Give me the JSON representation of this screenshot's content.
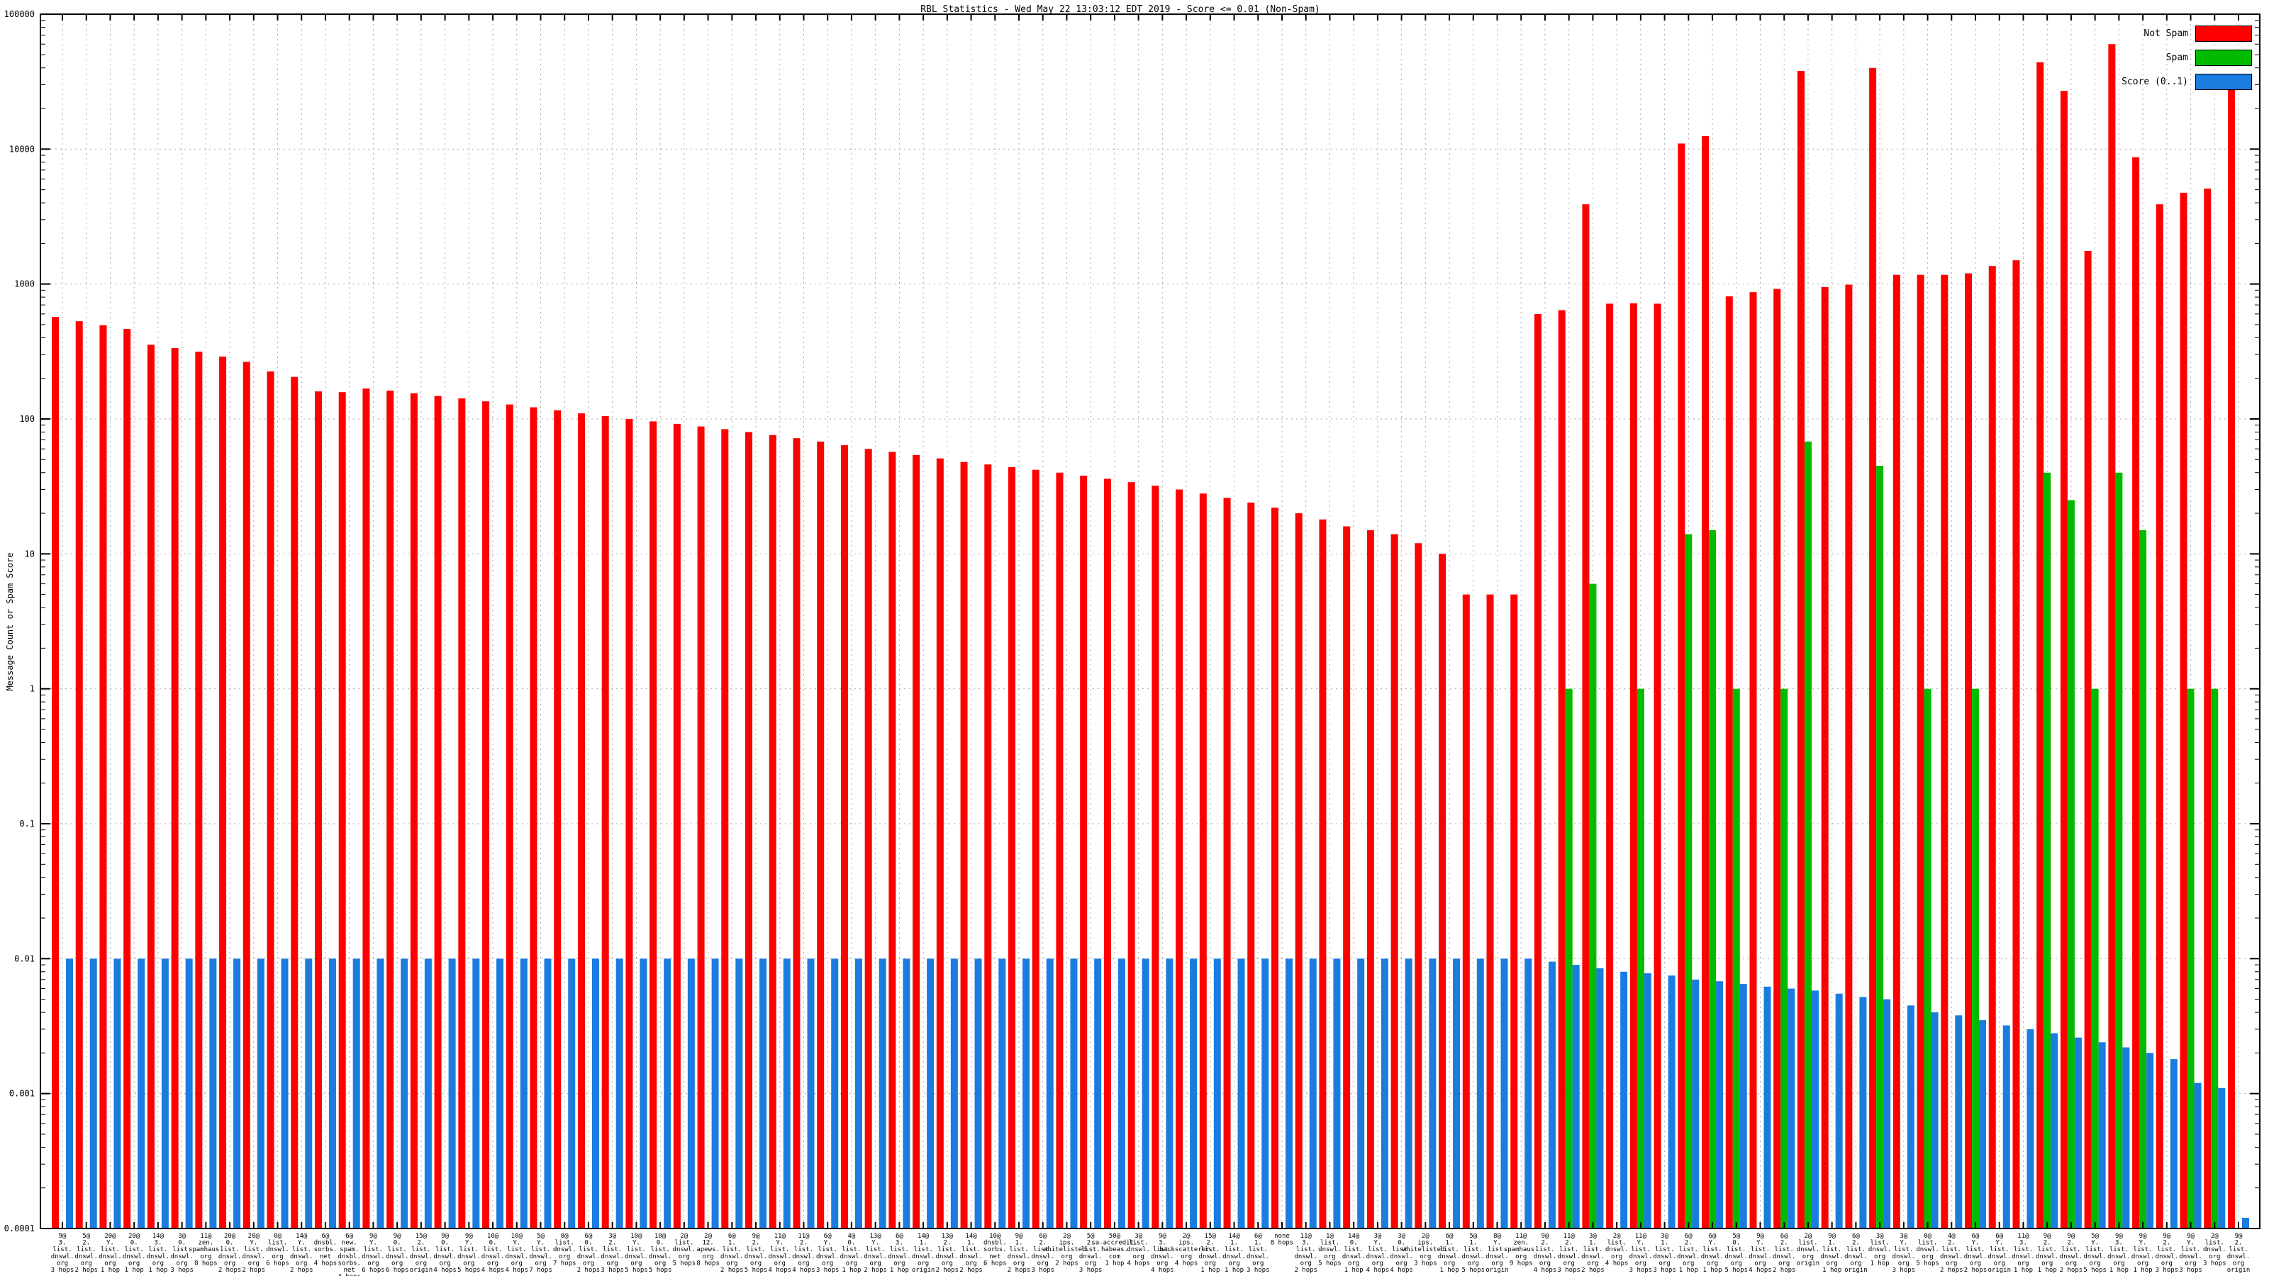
{
  "title": "RBL Statistics - Wed May 22 13:03:12 EDT 2019 - Score <= 0.01 (Non-Spam)",
  "y_axis_label": "Message Count or Spam Score",
  "legend": [
    {
      "label": "Not Spam",
      "color": "#ff0000"
    },
    {
      "label": "Spam",
      "color": "#00bb00"
    },
    {
      "label": "Score (0..1)",
      "color": "#1b7ce0"
    }
  ],
  "colors": {
    "frame": "#000000",
    "grid": "#aaaaaa",
    "background": "#ffffff"
  },
  "chart_data": {
    "type": "bar",
    "title": "RBL Statistics - Wed May 22 13:03:12 EDT 2019 - Score <= 0.01 (Non-Spam)",
    "xlabel": "",
    "ylabel": "Message Count or Spam Score",
    "yscale": "log",
    "ylim": [
      0.0001,
      100000
    ],
    "ytick_labels": [
      "100000",
      "10000",
      "1000",
      "100",
      "10",
      "1",
      "0.1",
      "0.01",
      "0.001",
      "0.0001"
    ],
    "grid": true,
    "legend_position": "top-right",
    "categories": [
      [
        "9@",
        "3.",
        "list.",
        "dnswl.",
        "org",
        "3 hops"
      ],
      [
        "5@",
        "2.",
        "list.",
        "dnswl.",
        "org",
        "2 hops"
      ],
      [
        "20@",
        "Y.",
        "list.",
        "dnswl.",
        "org",
        "1 hop"
      ],
      [
        "20@",
        "0.",
        "list.",
        "dnswl.",
        "org",
        "1 hop"
      ],
      [
        "14@",
        "3.",
        "list.",
        "dnswl.",
        "org",
        "1 hop"
      ],
      [
        "3@",
        "0.",
        "list.",
        "dnswl.",
        "org",
        "3 hops"
      ],
      [
        "11@",
        "zen.",
        "spamhaus.",
        "org",
        "8 hops"
      ],
      [
        "20@",
        "0.",
        "list.",
        "dnswl.",
        "org",
        "2 hops"
      ],
      [
        "20@",
        "Y.",
        "list.",
        "dnswl.",
        "org",
        "2 hops"
      ],
      [
        "0@",
        "list.",
        "dnswl.",
        "org",
        "6 hops"
      ],
      [
        "14@",
        "Y.",
        "list.",
        "dnswl.",
        "org",
        "2 hops"
      ],
      [
        "6@",
        "dnsbl.",
        "sorbs.",
        "net",
        "4 hops"
      ],
      [
        "6@",
        "new.",
        "spam.",
        "dnsbl.",
        "sorbs.",
        "net",
        "4 hops"
      ],
      [
        "9@",
        "Y.",
        "list.",
        "dnswl.",
        "org",
        "6 hops"
      ],
      [
        "9@",
        "0.",
        "list.",
        "dnswl.",
        "org",
        "6 hops"
      ],
      [
        "15@",
        "2.",
        "list.",
        "dnswl.",
        "org",
        "origin"
      ],
      [
        "9@",
        "0.",
        "list.",
        "dnswl.",
        "org",
        "4 hops"
      ],
      [
        "9@",
        "Y.",
        "list.",
        "dnswl.",
        "org",
        "5 hops"
      ],
      [
        "10@",
        "0.",
        "list.",
        "dnswl.",
        "org",
        "4 hops"
      ],
      [
        "10@",
        "Y.",
        "list.",
        "dnswl.",
        "org",
        "4 hops"
      ],
      [
        "5@",
        "Y.",
        "list.",
        "dnswl.",
        "org",
        "7 hops"
      ],
      [
        "0@",
        "list.",
        "dnswl.",
        "org",
        "7 hops"
      ],
      [
        "6@",
        "0.",
        "list.",
        "dnswl.",
        "org",
        "2 hops"
      ],
      [
        "3@",
        "2.",
        "list.",
        "dnswl.",
        "org",
        "3 hops"
      ],
      [
        "10@",
        "Y.",
        "list.",
        "dnswl.",
        "org",
        "5 hops"
      ],
      [
        "10@",
        "0.",
        "list.",
        "dnswl.",
        "org",
        "5 hops"
      ],
      [
        "2@",
        "list.",
        "dnswl.",
        "org",
        "5 hops"
      ],
      [
        "2@",
        "12.",
        "apews.",
        "org",
        "8 hops"
      ],
      [
        "6@",
        "1.",
        "list.",
        "dnswl.",
        "org",
        "2 hops"
      ],
      [
        "9@",
        "2.",
        "list.",
        "dnswl.",
        "org",
        "5 hops"
      ],
      [
        "11@",
        "Y.",
        "list.",
        "dnswl.",
        "org",
        "4 hops"
      ],
      [
        "11@",
        "2.",
        "list.",
        "dnswl.",
        "org",
        "4 hops"
      ],
      [
        "6@",
        "Y.",
        "list.",
        "dnswl.",
        "org",
        "3 hops"
      ],
      [
        "4@",
        "0.",
        "list.",
        "dnswl.",
        "org",
        "1 hop"
      ],
      [
        "13@",
        "Y.",
        "list.",
        "dnswl.",
        "org",
        "2 hops"
      ],
      [
        "6@",
        "3.",
        "list.",
        "dnswl.",
        "org",
        "1 hop"
      ],
      [
        "14@",
        "1.",
        "list.",
        "dnswl.",
        "org",
        "origin"
      ],
      [
        "13@",
        "2.",
        "list.",
        "dnswl.",
        "org",
        "2 hops"
      ],
      [
        "14@",
        "1.",
        "list.",
        "dnswl.",
        "org",
        "2 hops"
      ],
      [
        "10@",
        "dnsbl.",
        "sorbs.",
        "net",
        "6 hops"
      ],
      [
        "9@",
        "1.",
        "list.",
        "dnswl.",
        "org",
        "2 hops"
      ],
      [
        "6@",
        "2.",
        "list.",
        "dnswl.",
        "org",
        "3 hops"
      ],
      [
        "2@",
        "ips.",
        "whitelisted.",
        "org",
        "2 hops"
      ],
      [
        "5@",
        "2.",
        "list.",
        "dnswl.",
        "org",
        "3 hops"
      ],
      [
        "50@",
        "sa-accredit.",
        "habeas.",
        "com",
        "1 hop"
      ],
      [
        "3@",
        "list.",
        "dnswl.",
        "org",
        "4 hops"
      ],
      [
        "9@",
        "3.",
        "list.",
        "dnswl.",
        "org",
        "4 hops"
      ],
      [
        "2@",
        "ips.",
        "backscatterer.",
        "org",
        "4 hops"
      ],
      [
        "15@",
        "2.",
        "list.",
        "dnswl.",
        "org",
        "1 hop"
      ],
      [
        "14@",
        "1.",
        "list.",
        "dnswl.",
        "org",
        "1 hop"
      ],
      [
        "6@",
        "1.",
        "list.",
        "dnswl.",
        "org",
        "3 hops"
      ],
      [
        "none",
        "8 hops"
      ],
      [
        "11@",
        "3.",
        "list.",
        "dnswl.",
        "org",
        "2 hops"
      ],
      [
        "1@",
        "list.",
        "dnswl.",
        "org",
        "5 hops"
      ],
      [
        "14@",
        "0.",
        "list.",
        "dnswl.",
        "org",
        "1 hop"
      ],
      [
        "3@",
        "Y.",
        "list.",
        "dnswl.",
        "org",
        "4 hops"
      ],
      [
        "3@",
        "0.",
        "list.",
        "dnswl.",
        "org",
        "4 hops"
      ],
      [
        "2@",
        "ips.",
        "whitelisted.",
        "org",
        "3 hops"
      ],
      [
        "6@",
        "1.",
        "list.",
        "dnswl.",
        "org",
        "1 hop"
      ],
      [
        "5@",
        "1.",
        "list.",
        "dnswl.",
        "org",
        "5 hops"
      ],
      [
        "8@",
        "Y.",
        "list.",
        "dnswl.",
        "org",
        "origin"
      ],
      [
        "11@",
        "zen.",
        "spamhaus.",
        "org",
        "9 hops"
      ],
      [
        "9@",
        "2.",
        "list.",
        "dnswl.",
        "org",
        "4 hops"
      ],
      [
        "11@",
        "2.",
        "list.",
        "dnswl.",
        "org",
        "3 hops"
      ],
      [
        "3@",
        "1.",
        "list.",
        "dnswl.",
        "org",
        "2 hops"
      ],
      [
        "2@",
        "list.",
        "dnswl.",
        "org",
        "4 hops"
      ],
      [
        "11@",
        "Y.",
        "list.",
        "dnswl.",
        "org",
        "3 hops"
      ],
      [
        "3@",
        "1.",
        "list.",
        "dnswl.",
        "org",
        "3 hops"
      ],
      [
        "6@",
        "2.",
        "list.",
        "dnswl.",
        "org",
        "1 hop"
      ],
      [
        "6@",
        "Y.",
        "list.",
        "dnswl.",
        "org",
        "1 hop"
      ],
      [
        "5@",
        "0.",
        "list.",
        "dnswl.",
        "org",
        "5 hops"
      ],
      [
        "9@",
        "Y.",
        "list.",
        "dnswl.",
        "org",
        "4 hops"
      ],
      [
        "6@",
        "2.",
        "list.",
        "dnswl.",
        "org",
        "2 hops"
      ],
      [
        "2@",
        "list.",
        "dnswl.",
        "org",
        "origin"
      ],
      [
        "9@",
        "1.",
        "list.",
        "dnswl.",
        "org",
        "1 hop"
      ],
      [
        "6@",
        "2.",
        "list.",
        "dnswl.",
        "org",
        "origin"
      ],
      [
        "3@",
        "list.",
        "dnswl.",
        "org",
        "1 hop"
      ],
      [
        "3@",
        "Y.",
        "list.",
        "dnswl.",
        "org",
        "3 hops"
      ],
      [
        "0@",
        "list.",
        "dnswl.",
        "org",
        "5 hops"
      ],
      [
        "4@",
        "2.",
        "list.",
        "dnswl.",
        "org",
        "2 hops"
      ],
      [
        "6@",
        "Y.",
        "list.",
        "dnswl.",
        "org",
        "2 hops"
      ],
      [
        "6@",
        "Y.",
        "list.",
        "dnswl.",
        "org",
        "origin"
      ],
      [
        "11@",
        "3.",
        "list.",
        "dnswl.",
        "org",
        "1 hop"
      ],
      [
        "9@",
        "2.",
        "list.",
        "dnswl.",
        "org",
        "1 hop"
      ],
      [
        "9@",
        "2.",
        "list.",
        "dnswl.",
        "org",
        "2 hops"
      ],
      [
        "5@",
        "Y.",
        "list.",
        "dnswl.",
        "org",
        "5 hops"
      ],
      [
        "9@",
        "3.",
        "list.",
        "dnswl.",
        "org",
        "1 hop"
      ],
      [
        "9@",
        "Y.",
        "list.",
        "dnswl.",
        "org",
        "1 hop"
      ],
      [
        "9@",
        "2.",
        "list.",
        "dnswl.",
        "org",
        "3 hops"
      ],
      [
        "9@",
        "Y.",
        "list.",
        "dnswl.",
        "org",
        "3 hops"
      ],
      [
        "2@",
        "list.",
        "dnswl.",
        "org",
        "3 hops"
      ],
      [
        "9@",
        "2.",
        "list.",
        "dnswl.",
        "org",
        "origin"
      ]
    ],
    "series": [
      {
        "name": "Not Spam",
        "color": "#ff0000",
        "values": [
          570,
          530,
          495,
          465,
          355,
          335,
          315,
          290,
          265,
          225,
          205,
          160,
          158,
          168,
          162,
          155,
          148,
          142,
          135,
          128,
          122,
          116,
          110,
          105,
          100,
          96,
          92,
          88,
          84,
          80,
          76,
          72,
          68,
          64,
          60,
          57,
          54,
          51,
          48,
          46,
          44,
          42,
          40,
          38,
          36,
          34,
          32,
          30,
          28,
          26,
          24,
          22,
          20,
          18,
          16,
          15,
          14,
          12,
          10,
          5,
          5,
          5,
          600,
          640,
          3900,
          715,
          720,
          715,
          11000,
          12500,
          810,
          870,
          920,
          38000,
          950,
          990,
          40000,
          1170,
          1170,
          1170,
          1200,
          1360,
          1500,
          44000,
          27000,
          1760,
          60000,
          8700,
          3900,
          4750,
          5100,
          36000
        ]
      },
      {
        "name": "Spam",
        "color": "#00bb00",
        "values": [
          0,
          0,
          0,
          0,
          0,
          0,
          0,
          0,
          0,
          0,
          0,
          0,
          0,
          0,
          0,
          0,
          0,
          0,
          0,
          0,
          0,
          0,
          0,
          0,
          0,
          0,
          0,
          0,
          0,
          0,
          0,
          0,
          0,
          0,
          0,
          0,
          0,
          0,
          0,
          0,
          0,
          0,
          0,
          0,
          0,
          0,
          0,
          0,
          0,
          0,
          0,
          0,
          0,
          0,
          0,
          0,
          0,
          0,
          0,
          0,
          0,
          0,
          0,
          1,
          6,
          0,
          1,
          0,
          14,
          15,
          1,
          0,
          1,
          68,
          0,
          0,
          45,
          0,
          1,
          0,
          1,
          0,
          0,
          40,
          25,
          1,
          40,
          15,
          0,
          1,
          1,
          0
        ]
      },
      {
        "name": "Score (0..1)",
        "color": "#1b7ce0",
        "values": [
          0.01,
          0.01,
          0.01,
          0.01,
          0.01,
          0.01,
          0.01,
          0.01,
          0.01,
          0.01,
          0.01,
          0.01,
          0.01,
          0.01,
          0.01,
          0.01,
          0.01,
          0.01,
          0.01,
          0.01,
          0.01,
          0.01,
          0.01,
          0.01,
          0.01,
          0.01,
          0.01,
          0.01,
          0.01,
          0.01,
          0.01,
          0.01,
          0.01,
          0.01,
          0.01,
          0.01,
          0.01,
          0.01,
          0.01,
          0.01,
          0.01,
          0.01,
          0.01,
          0.01,
          0.01,
          0.01,
          0.01,
          0.01,
          0.01,
          0.01,
          0.01,
          0.01,
          0.01,
          0.01,
          0.01,
          0.01,
          0.01,
          0.01,
          0.01,
          0.01,
          0.01,
          0.01,
          0.0095,
          0.009,
          0.0085,
          0.008,
          0.0078,
          0.0075,
          0.007,
          0.0068,
          0.0065,
          0.0062,
          0.006,
          0.0058,
          0.0055,
          0.0052,
          0.005,
          0.0045,
          0.004,
          0.0038,
          0.0035,
          0.0032,
          0.003,
          0.0028,
          0.0026,
          0.0024,
          0.0022,
          0.002,
          0.0018,
          0.0012,
          0.0011,
          0.00012
        ]
      }
    ]
  }
}
